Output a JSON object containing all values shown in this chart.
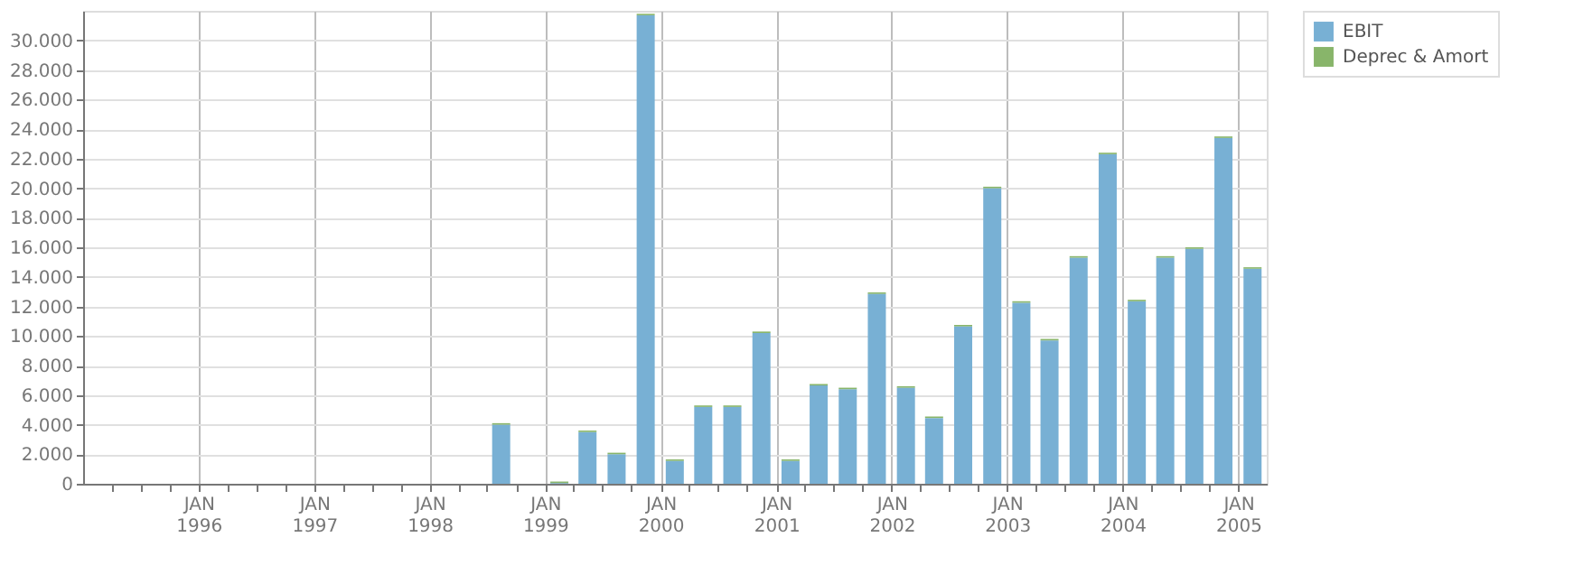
{
  "chart_data": {
    "type": "bar",
    "stacked": true,
    "legend": "top right",
    "grid": true,
    "x": [
      "1998-08-15",
      "1998-11-15",
      "1999-02-15",
      "1999-05-15",
      "1999-08-15",
      "1999-11-15",
      "2000-02-15",
      "2000-05-15",
      "2000-08-15",
      "2000-11-15",
      "2001-02-15",
      "2001-05-15",
      "2001-08-15",
      "2001-11-15",
      "2002-02-15",
      "2002-05-15",
      "2002-08-15",
      "2002-11-15",
      "2003-02-15",
      "2003-05-15",
      "2003-08-15",
      "2003-11-15",
      "2004-02-15",
      "2004-05-15",
      "2004-08-15",
      "2004-11-15",
      "2005-02-15"
    ],
    "series": [
      {
        "name": "EBIT",
        "color": "#78b0d4",
        "values": [
          4000,
          null,
          50,
          3500,
          2000,
          31700,
          1550,
          5200,
          5200,
          10200,
          1550,
          6650,
          6400,
          12850,
          6500,
          4450,
          10650,
          20000,
          12250,
          9700,
          15300,
          22300,
          12350,
          15300,
          15900,
          23400,
          14550
        ]
      },
      {
        "name": "Deprec & Amort",
        "color": "#88b56a",
        "values": [
          100,
          null,
          100,
          100,
          100,
          100,
          100,
          100,
          100,
          100,
          100,
          100,
          100,
          100,
          100,
          100,
          100,
          100,
          100,
          100,
          100,
          100,
          100,
          100,
          100,
          100,
          100
        ]
      }
    ],
    "xlim": [
      "1995-01-01",
      "2005-04-01"
    ],
    "xticks": [
      {
        "value": "1995-04-01",
        "label": null
      },
      {
        "value": "1995-07-01",
        "label": null
      },
      {
        "value": "1995-10-01",
        "label": null
      },
      {
        "value": "1996-01-01",
        "label": "JAN 1996"
      },
      {
        "value": "1996-04-01",
        "label": null
      },
      {
        "value": "1996-07-01",
        "label": null
      },
      {
        "value": "1996-10-01",
        "label": null
      },
      {
        "value": "1997-01-01",
        "label": "JAN 1997"
      },
      {
        "value": "1997-04-01",
        "label": null
      },
      {
        "value": "1997-07-01",
        "label": null
      },
      {
        "value": "1997-10-01",
        "label": null
      },
      {
        "value": "1998-01-01",
        "label": "JAN 1998"
      },
      {
        "value": "1998-04-01",
        "label": null
      },
      {
        "value": "1998-07-01",
        "label": null
      },
      {
        "value": "1998-10-01",
        "label": null
      },
      {
        "value": "1999-01-01",
        "label": "JAN 1999"
      },
      {
        "value": "1999-04-01",
        "label": null
      },
      {
        "value": "1999-07-01",
        "label": null
      },
      {
        "value": "1999-10-01",
        "label": null
      },
      {
        "value": "2000-01-01",
        "label": "JAN 2000"
      },
      {
        "value": "2000-04-01",
        "label": null
      },
      {
        "value": "2000-07-01",
        "label": null
      },
      {
        "value": "2000-10-01",
        "label": null
      },
      {
        "value": "2001-01-01",
        "label": "JAN 2001"
      },
      {
        "value": "2001-04-01",
        "label": null
      },
      {
        "value": "2001-07-01",
        "label": null
      },
      {
        "value": "2001-10-01",
        "label": null
      },
      {
        "value": "2002-01-01",
        "label": "JAN 2002"
      },
      {
        "value": "2002-04-01",
        "label": null
      },
      {
        "value": "2002-07-01",
        "label": null
      },
      {
        "value": "2002-10-01",
        "label": null
      },
      {
        "value": "2003-01-01",
        "label": "JAN 2003"
      },
      {
        "value": "2003-04-01",
        "label": null
      },
      {
        "value": "2003-07-01",
        "label": null
      },
      {
        "value": "2003-10-01",
        "label": null
      },
      {
        "value": "2004-01-01",
        "label": "JAN 2004"
      },
      {
        "value": "2004-04-01",
        "label": null
      },
      {
        "value": "2004-07-01",
        "label": null
      },
      {
        "value": "2004-10-01",
        "label": null
      },
      {
        "value": "2005-01-01",
        "label": "JAN 2005"
      }
    ],
    "ylim": [
      0,
      32000
    ],
    "yticks": [
      {
        "value": 0,
        "label": "0"
      },
      {
        "value": 2000,
        "label": "2.000"
      },
      {
        "value": 4000,
        "label": "4.000"
      },
      {
        "value": 6000,
        "label": "6.000"
      },
      {
        "value": 8000,
        "label": "8.000"
      },
      {
        "value": 10000,
        "label": "10.000"
      },
      {
        "value": 12000,
        "label": "12.000"
      },
      {
        "value": 14000,
        "label": "14.000"
      },
      {
        "value": 16000,
        "label": "16.000"
      },
      {
        "value": 18000,
        "label": "18.000"
      },
      {
        "value": 20000,
        "label": "20.000"
      },
      {
        "value": 22000,
        "label": "22.000"
      },
      {
        "value": 24000,
        "label": "24.000"
      },
      {
        "value": 26000,
        "label": "26.000"
      },
      {
        "value": 28000,
        "label": "28.000"
      },
      {
        "value": 30000,
        "label": "30.000"
      }
    ]
  }
}
